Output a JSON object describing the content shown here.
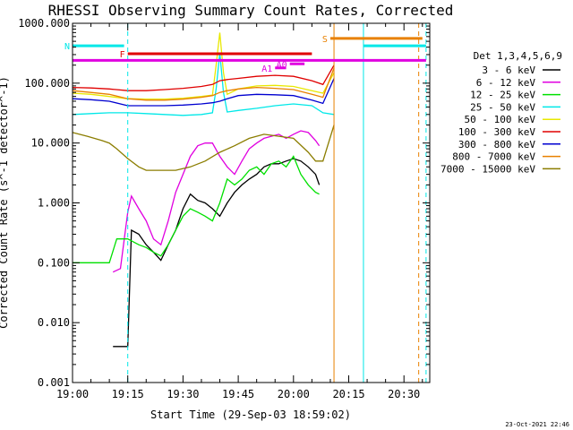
{
  "chart_data": {
    "type": "line",
    "title": "RHESSI Observing Summary Count Rates, Corrected",
    "xlabel": "Start Time (29-Sep-03 18:59:02)",
    "ylabel": "Corrected Count Rate (s^-1 detector^-1)",
    "yscale": "log",
    "ylim": [
      0.001,
      1000
    ],
    "xlim": [
      "19:00",
      "20:37"
    ],
    "x_ticks": [
      "19:00",
      "19:15",
      "19:30",
      "19:45",
      "20:00",
      "20:15",
      "20:30"
    ],
    "y_ticks": [
      "1000.000",
      "100.000",
      "10.000",
      "1.000",
      "0.100",
      "0.010",
      "0.001"
    ],
    "grid": false,
    "legend_position": "right",
    "legend_title": "Det 1,3,4,5,6,9",
    "timestamp": "23-Oct-2021 22:46",
    "series": [
      {
        "name": "3 - 6 keV",
        "color": "#000000",
        "x": [
          "19:11",
          "19:13",
          "19:15",
          "19:16",
          "19:18",
          "19:20",
          "19:22",
          "19:24",
          "19:26",
          "19:28",
          "19:30",
          "19:32",
          "19:34",
          "19:36",
          "19:38",
          "19:40",
          "19:42",
          "19:44",
          "19:46",
          "19:48",
          "19:50",
          "19:52",
          "19:54",
          "19:56",
          "19:58",
          "20:00",
          "20:02",
          "20:04",
          "20:06",
          "20:07"
        ],
        "values": [
          0.004,
          0.004,
          0.004,
          0.35,
          0.3,
          0.2,
          0.15,
          0.11,
          0.2,
          0.35,
          0.8,
          1.4,
          1.1,
          1.0,
          0.8,
          0.6,
          1.0,
          1.5,
          2.0,
          2.5,
          3.0,
          4.0,
          4.5,
          4.5,
          5.0,
          5.5,
          5.0,
          4.0,
          3.0,
          2.0
        ]
      },
      {
        "name": "6 - 12 keV",
        "color": "#e000e0",
        "x": [
          "19:11",
          "19:13",
          "19:15",
          "19:16",
          "19:18",
          "19:20",
          "19:22",
          "19:24",
          "19:26",
          "19:28",
          "19:30",
          "19:32",
          "19:34",
          "19:36",
          "19:38",
          "19:40",
          "19:42",
          "19:44",
          "19:46",
          "19:48",
          "19:50",
          "19:52",
          "19:54",
          "19:56",
          "19:58",
          "20:00",
          "20:02",
          "20:04",
          "20:06",
          "20:07"
        ],
        "values": [
          0.07,
          0.08,
          0.7,
          1.3,
          0.8,
          0.5,
          0.25,
          0.2,
          0.5,
          1.5,
          3.0,
          6.0,
          9.0,
          10.0,
          10.0,
          6.0,
          4.0,
          3.0,
          5.0,
          8.0,
          10.0,
          12.0,
          13.0,
          14.0,
          12.0,
          14.0,
          16.0,
          15.0,
          11.0,
          9.0
        ]
      },
      {
        "name": "12 - 25 keV",
        "color": "#00e000",
        "x": [
          "19:00",
          "19:04",
          "19:08",
          "19:10",
          "19:12",
          "19:15",
          "19:18",
          "19:20",
          "19:22",
          "19:24",
          "19:26",
          "19:28",
          "19:30",
          "19:32",
          "19:34",
          "19:36",
          "19:38",
          "19:40",
          "19:42",
          "19:44",
          "19:46",
          "19:48",
          "19:50",
          "19:52",
          "19:54",
          "19:56",
          "19:58",
          "20:00",
          "20:02",
          "20:04",
          "20:06",
          "20:07"
        ],
        "values": [
          0.1,
          0.1,
          0.1,
          0.1,
          0.25,
          0.25,
          0.2,
          0.18,
          0.15,
          0.13,
          0.2,
          0.35,
          0.6,
          0.8,
          0.7,
          0.6,
          0.5,
          1.0,
          2.5,
          2.0,
          2.5,
          3.5,
          4.0,
          3.0,
          4.5,
          5.0,
          4.0,
          6.0,
          3.0,
          2.0,
          1.5,
          1.4
        ]
      },
      {
        "name": "25 - 50 keV",
        "color": "#00e8e8",
        "x": [
          "19:00",
          "19:05",
          "19:10",
          "19:15",
          "19:20",
          "19:25",
          "19:30",
          "19:35",
          "19:38",
          "19:39",
          "19:40",
          "19:41",
          "19:42",
          "19:45",
          "19:50",
          "19:55",
          "20:00",
          "20:05",
          "20:08",
          "20:11"
        ],
        "values": [
          30,
          31,
          32,
          32,
          31,
          30,
          29,
          30,
          32,
          80,
          320,
          70,
          33,
          35,
          38,
          42,
          45,
          42,
          32,
          30
        ]
      },
      {
        "name": "50 - 100 keV",
        "color": "#e8e800",
        "x": [
          "19:00",
          "19:05",
          "19:10",
          "19:15",
          "19:20",
          "19:25",
          "19:30",
          "19:35",
          "19:38",
          "19:39",
          "19:40",
          "19:41",
          "19:42",
          "19:45",
          "19:50",
          "19:55",
          "20:00",
          "20:05",
          "20:08",
          "20:11"
        ],
        "values": [
          68,
          65,
          60,
          55,
          54,
          54,
          56,
          60,
          63,
          200,
          700,
          150,
          65,
          80,
          90,
          92,
          88,
          75,
          68,
          150
        ]
      },
      {
        "name": "100 - 300 keV",
        "color": "#e00000",
        "x": [
          "19:00",
          "19:05",
          "19:10",
          "19:15",
          "19:20",
          "19:25",
          "19:30",
          "19:35",
          "19:38",
          "19:40",
          "19:42",
          "19:45",
          "19:50",
          "19:55",
          "20:00",
          "20:05",
          "20:08",
          "20:11"
        ],
        "values": [
          85,
          83,
          80,
          75,
          75,
          78,
          82,
          88,
          95,
          110,
          115,
          120,
          130,
          135,
          130,
          110,
          95,
          200
        ]
      },
      {
        "name": "300 - 800 keV",
        "color": "#0000d0",
        "x": [
          "19:00",
          "19:05",
          "19:10",
          "19:15",
          "19:20",
          "19:25",
          "19:30",
          "19:35",
          "19:38",
          "19:40",
          "19:42",
          "19:45",
          "19:50",
          "19:55",
          "20:00",
          "20:05",
          "20:08",
          "20:11"
        ],
        "values": [
          55,
          53,
          50,
          42,
          42,
          42,
          43,
          45,
          47,
          50,
          55,
          62,
          65,
          64,
          62,
          52,
          46,
          120
        ]
      },
      {
        "name": "800 - 7000 keV",
        "color": "#e88000",
        "x": [
          "19:00",
          "19:05",
          "19:10",
          "19:15",
          "19:20",
          "19:25",
          "19:30",
          "19:35",
          "19:38",
          "19:40",
          "19:42",
          "19:45",
          "19:50",
          "19:55",
          "20:00",
          "20:05",
          "20:08",
          "20:11"
        ],
        "values": [
          75,
          70,
          65,
          55,
          52,
          52,
          54,
          58,
          62,
          70,
          75,
          80,
          85,
          82,
          78,
          65,
          58,
          180
        ]
      },
      {
        "name": "7000 - 15000 keV",
        "color": "#8b7d00",
        "x": [
          "19:00",
          "19:04",
          "19:08",
          "19:10",
          "19:12",
          "19:15",
          "19:18",
          "19:20",
          "19:24",
          "19:28",
          "19:32",
          "19:36",
          "19:40",
          "19:44",
          "19:48",
          "19:52",
          "19:56",
          "20:00",
          "20:04",
          "20:06",
          "20:08",
          "20:11"
        ],
        "values": [
          15,
          13,
          11,
          10,
          8,
          5.5,
          4,
          3.5,
          3.5,
          3.5,
          4,
          5,
          7,
          9,
          12,
          14,
          13,
          12,
          7,
          5,
          5,
          20
        ]
      }
    ],
    "flags": [
      {
        "label": "N",
        "color": "#00e8e8",
        "start": "19:00",
        "end": "19:14",
        "level": 420
      },
      {
        "label": "F",
        "color": "#e00000",
        "start": "19:15",
        "end": "20:05",
        "level": 310
      },
      {
        "label": "A0",
        "color": "#e000e0",
        "start": "19:59",
        "end": "20:03",
        "level": 210
      },
      {
        "label": "A1",
        "color": "#e000e0",
        "start": "19:55",
        "end": "19:58",
        "level": 180
      },
      {
        "label": "S",
        "color": "#e88000",
        "start": "20:10",
        "end": "20:35",
        "level": 560
      },
      {
        "label": "",
        "color": "#e000e0",
        "start": "19:00",
        "end": "20:36",
        "level": 240
      },
      {
        "label": "",
        "color": "#00e8e8",
        "start": "20:19",
        "end": "20:36",
        "level": 420
      }
    ],
    "markers": [
      {
        "time": "19:00",
        "color": "#00e8e8",
        "style": "dashed"
      },
      {
        "time": "19:15",
        "color": "#00e8e8",
        "style": "dashed"
      },
      {
        "time": "20:11",
        "color": "#e88000",
        "style": "solid"
      },
      {
        "time": "20:19",
        "color": "#00e8e8",
        "style": "solid"
      },
      {
        "time": "20:34",
        "color": "#e88000",
        "style": "dashed"
      },
      {
        "time": "20:36",
        "color": "#00e8e8",
        "style": "dashed"
      }
    ]
  }
}
